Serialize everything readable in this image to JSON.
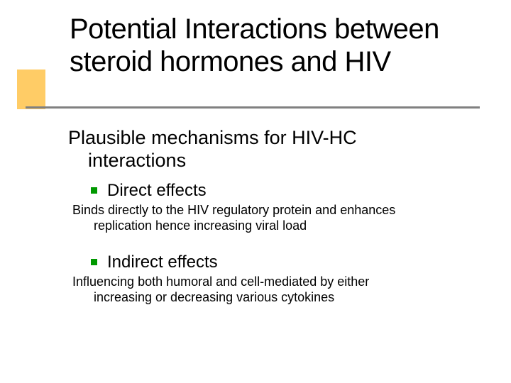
{
  "colors": {
    "background": "#ffffff",
    "text": "#000000",
    "accent_block": "#ffcc66",
    "underline": "#808080",
    "bullet_square": "#009900"
  },
  "typography": {
    "font_family": "Verdana, Geneva, sans-serif",
    "title_fontsize": 40,
    "subtitle_fontsize": 27,
    "bullet_label_fontsize": 24,
    "desc_fontsize": 18
  },
  "title": {
    "line1": "Potential Interactions between",
    "line2": "steroid hormones and HIV"
  },
  "subtitle": {
    "line1": "Plausible mechanisms for HIV-HC",
    "line2": "interactions"
  },
  "bullets": [
    {
      "label": "Direct effects",
      "desc_line1": "Binds directly to the HIV regulatory protein and enhances",
      "desc_line2": "replication hence increasing viral load"
    },
    {
      "label": "Indirect effects",
      "desc_line1": "Influencing both humoral and cell-mediated by either",
      "desc_line2": "increasing or decreasing various cytokines"
    }
  ]
}
